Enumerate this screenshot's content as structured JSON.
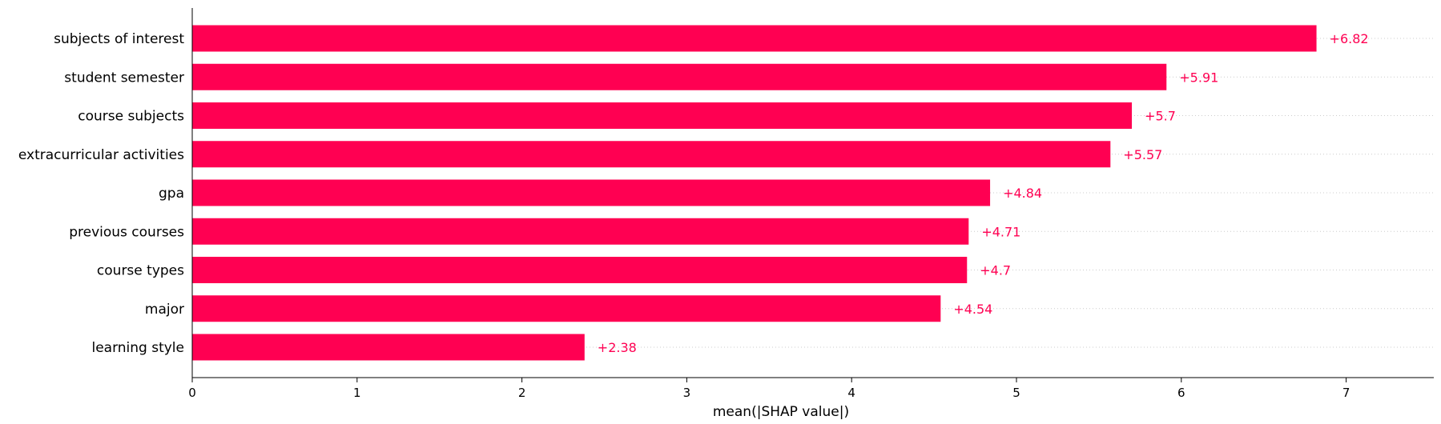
{
  "colors": {
    "bar": "#ff0052",
    "axis": "#000000",
    "grid": "#cccccc"
  },
  "chart_data": {
    "type": "bar",
    "orientation": "horizontal",
    "title": "",
    "xlabel": "mean(|SHAP value|)",
    "ylabel": "",
    "xlim": [
      0,
      7.5
    ],
    "xticks": [
      0,
      1,
      2,
      3,
      4,
      5,
      6,
      7
    ],
    "grid": false,
    "categories": [
      "subjects of interest",
      "student semester",
      "course subjects",
      "extracurricular activities",
      "gpa",
      "previous courses",
      "course types",
      "major",
      "learning style"
    ],
    "values": [
      6.82,
      5.91,
      5.7,
      5.57,
      4.84,
      4.71,
      4.7,
      4.54,
      2.38
    ],
    "value_labels": [
      "+6.82",
      "+5.91",
      "+5.7",
      "+5.57",
      "+4.84",
      "+4.71",
      "+4.7",
      "+4.54",
      "+2.38"
    ]
  }
}
